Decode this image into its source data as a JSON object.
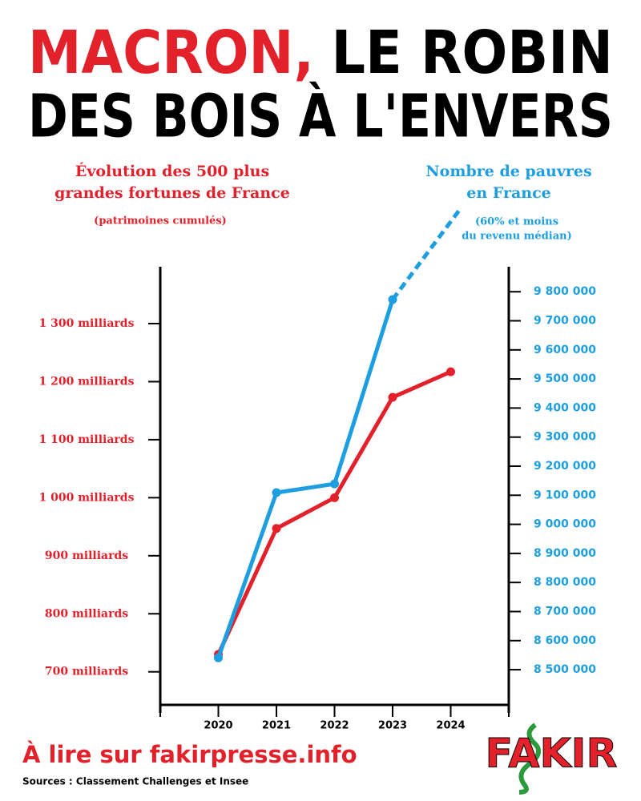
{
  "chart_data": {
    "type": "line",
    "title": [
      "MACRON,",
      "LE ROBIN",
      "DES BOIS À L'ENVERS"
    ],
    "left_label": [
      "Évolution des 500 plus",
      "grandes fortunes de France"
    ],
    "left_note": "(patrimoines cumulés)",
    "right_label": [
      "Nombre de pauvres",
      "en France"
    ],
    "right_note": [
      "(60% et moins",
      "du revenu médian)"
    ],
    "categories": [
      "2020",
      "2021",
      "2022",
      "2023",
      "2024"
    ],
    "series": [
      {
        "color": "#e3212b",
        "values": [
          730,
          947,
          1000,
          1173,
          1217
        ]
      },
      {
        "color": "#1d9ee0",
        "axis": "y2",
        "values": [
          8541000,
          9109000,
          9139000,
          9773000,
          null
        ]
      }
    ],
    "ylim": [
      643,
      1398
    ],
    "yticks": [
      {
        "value": 700,
        "label": "700 milliards"
      },
      {
        "value": 800,
        "label": "800 milliards"
      },
      {
        "value": 900,
        "label": "900 milliards"
      },
      {
        "value": 1000,
        "label": "1 000 milliards"
      },
      {
        "value": 1100,
        "label": "1 100 milliards"
      },
      {
        "value": 1200,
        "label": "1 200 milliards"
      },
      {
        "value": 1300,
        "label": "1 300 milliards"
      }
    ],
    "y2lim": [
      8379000,
      9886000
    ],
    "y2ticks": [
      {
        "value": 8500000,
        "label": "8 500 000"
      },
      {
        "value": 8600000,
        "label": "8 600 000"
      },
      {
        "value": 8700000,
        "label": "8 700 000"
      },
      {
        "value": 8800000,
        "label": "8 800 000"
      },
      {
        "value": 8900000,
        "label": "8 900 000"
      },
      {
        "value": 9000000,
        "label": "9 000 000"
      },
      {
        "value": 9100000,
        "label": "9 100 000"
      },
      {
        "value": 9200000,
        "label": "9 200 000"
      },
      {
        "value": 9300000,
        "label": "9 300 000"
      },
      {
        "value": 9400000,
        "label": "9 400 000"
      },
      {
        "value": 9500000,
        "label": "9 500 000"
      },
      {
        "value": 9600000,
        "label": "9 600 000"
      },
      {
        "value": 9700000,
        "label": "9 700 000"
      },
      {
        "value": 9800000,
        "label": "9 800 000"
      }
    ],
    "footer": "À lire sur fakirpresse.info",
    "sources": "Sources : Classement Challenges et Insee",
    "logo": "FAKIR"
  }
}
